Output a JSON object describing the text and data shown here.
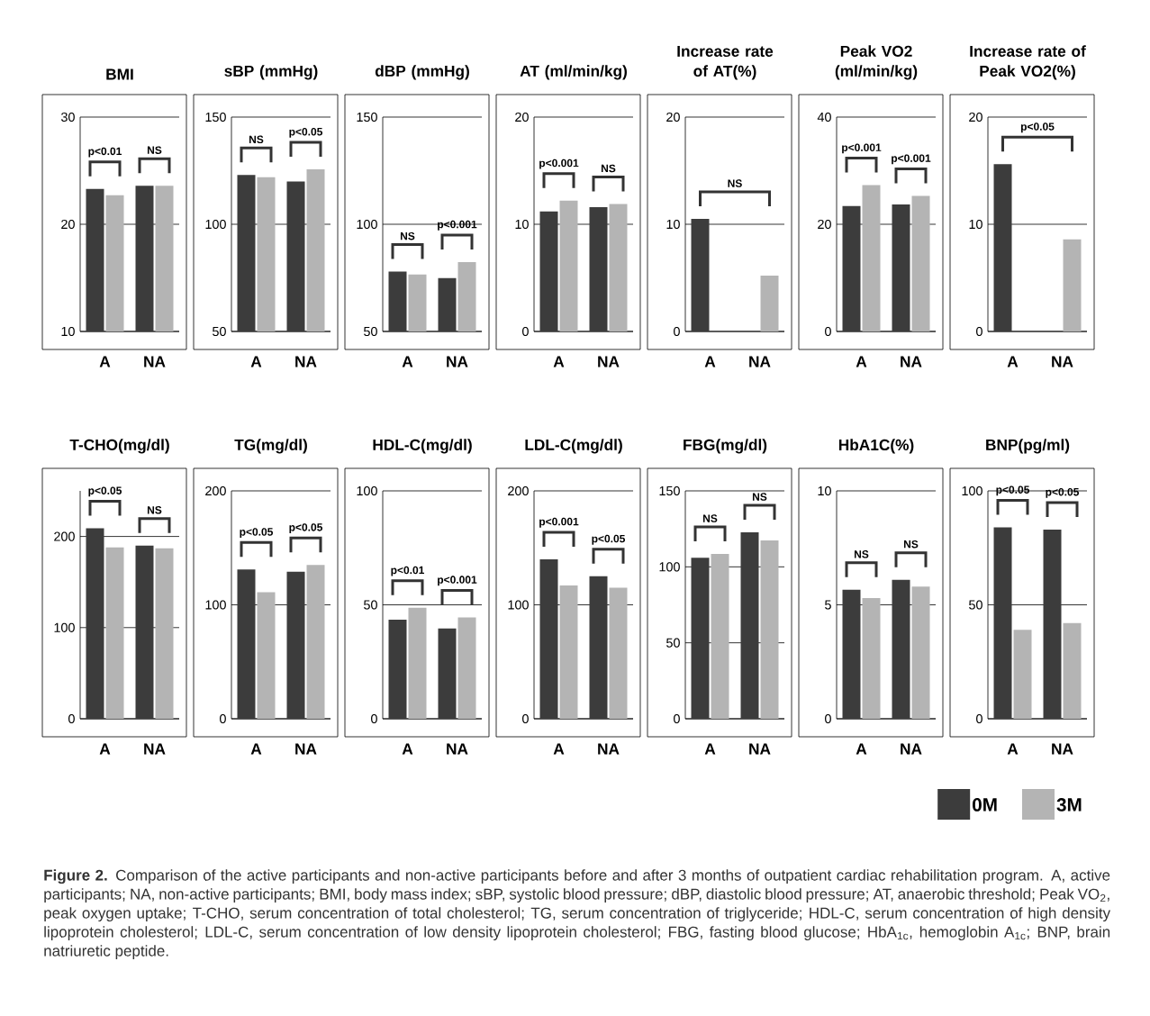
{
  "chart_data": [
    {
      "type": "bar",
      "title": "BMI",
      "categories": [
        "A",
        "NA"
      ],
      "ylim": [
        10,
        30
      ],
      "yticks": [
        10,
        20,
        30
      ],
      "grid": "y",
      "series": [
        {
          "color": "#3c3c3c",
          "values": [
            23.3,
            23.6
          ]
        },
        {
          "color": "#b4b4b4",
          "values": [
            22.7,
            23.6
          ]
        }
      ],
      "annotations": [
        "p<0.01",
        "NS"
      ]
    },
    {
      "type": "bar",
      "title": "sBP (mmHg)",
      "categories": [
        "A",
        "NA"
      ],
      "ylim": [
        50,
        150
      ],
      "yticks": [
        50,
        100,
        150
      ],
      "grid": "y",
      "series": [
        {
          "color": "#3c3c3c",
          "values": [
            123,
            120
          ]
        },
        {
          "color": "#b4b4b4",
          "values": [
            122,
            125.6
          ]
        }
      ],
      "annotations": [
        "NS",
        "p<0.05"
      ]
    },
    {
      "type": "bar",
      "title": "dBP (mmHg)",
      "categories": [
        "A",
        "NA"
      ],
      "ylim": [
        50,
        150
      ],
      "yticks": [
        50,
        100,
        150
      ],
      "grid": "y",
      "series": [
        {
          "color": "#3c3c3c",
          "values": [
            77.9,
            74.9
          ]
        },
        {
          "color": "#b4b4b4",
          "values": [
            76.6,
            82.4
          ]
        }
      ],
      "annotations": [
        "NS",
        "p<0.001"
      ]
    },
    {
      "type": "bar",
      "title": "AT (ml/min/kg)",
      "categories": [
        "A",
        "NA"
      ],
      "ylim": [
        0,
        20
      ],
      "yticks": [
        0,
        10,
        20
      ],
      "grid": "y",
      "series": [
        {
          "color": "#3c3c3c",
          "values": [
            11.2,
            11.6
          ]
        },
        {
          "color": "#b4b4b4",
          "values": [
            12.2,
            11.9
          ]
        }
      ],
      "annotations": [
        "p<0.001",
        "NS"
      ]
    },
    {
      "type": "bar",
      "title": "Increase rate of AT(%)",
      "categories": [
        "A",
        "NA"
      ],
      "ylim": [
        0,
        20
      ],
      "yticks": [
        0,
        10,
        20
      ],
      "grid": "y",
      "series": [
        {
          "color": "#3c3c3c",
          "values": [
            10.5,
            null
          ]
        },
        {
          "color": "#b4b4b4",
          "values": [
            null,
            5.2
          ]
        }
      ],
      "annotations": [
        "NS"
      ]
    },
    {
      "type": "bar",
      "title": "Peak VO2 (ml/min/kg)",
      "categories": [
        "A",
        "NA"
      ],
      "ylim": [
        0,
        40
      ],
      "yticks": [
        0,
        20,
        40
      ],
      "grid": "y",
      "series": [
        {
          "color": "#3c3c3c",
          "values": [
            23.4,
            23.7
          ]
        },
        {
          "color": "#b4b4b4",
          "values": [
            27.3,
            25.3
          ]
        }
      ],
      "annotations": [
        "p<0.001",
        "p<0.001"
      ]
    },
    {
      "type": "bar",
      "title": "Increase rate of Peak VO2(%)",
      "categories": [
        "A",
        "NA"
      ],
      "ylim": [
        0,
        20
      ],
      "yticks": [
        0,
        10,
        20
      ],
      "grid": "y",
      "series": [
        {
          "color": "#3c3c3c",
          "values": [
            15.6,
            null
          ]
        },
        {
          "color": "#b4b4b4",
          "values": [
            null,
            8.6
          ]
        }
      ],
      "annotations": [
        "p<0.05"
      ]
    },
    {
      "type": "bar",
      "title": "T-CHO(mg/dl)",
      "categories": [
        "A",
        "NA"
      ],
      "ylim": [
        0,
        250
      ],
      "yticks": [
        0,
        100,
        200
      ],
      "grid": "y",
      "series": [
        {
          "color": "#3c3c3c",
          "values": [
            209,
            190
          ]
        },
        {
          "color": "#b4b4b4",
          "values": [
            188,
            187
          ]
        }
      ],
      "annotations": [
        "p<0.05",
        "NS"
      ]
    },
    {
      "type": "bar",
      "title": "TG(mg/dl)",
      "categories": [
        "A",
        "NA"
      ],
      "ylim": [
        0,
        200
      ],
      "yticks": [
        0,
        100,
        200
      ],
      "grid": "y",
      "series": [
        {
          "color": "#3c3c3c",
          "values": [
            131,
            129
          ]
        },
        {
          "color": "#b4b4b4",
          "values": [
            111,
            135
          ]
        }
      ],
      "annotations": [
        "p<0.05",
        "p<0.05"
      ]
    },
    {
      "type": "bar",
      "title": "HDL-C(mg/dl)",
      "categories": [
        "A",
        "NA"
      ],
      "ylim": [
        0,
        100
      ],
      "yticks": [
        0,
        50,
        100
      ],
      "grid": "y",
      "series": [
        {
          "color": "#3c3c3c",
          "values": [
            43.5,
            39.6
          ]
        },
        {
          "color": "#b4b4b4",
          "values": [
            48.7,
            44.5
          ]
        }
      ],
      "annotations": [
        "p<0.01",
        "p<0.001"
      ]
    },
    {
      "type": "bar",
      "title": "LDL-C(mg/dl)",
      "categories": [
        "A",
        "NA"
      ],
      "ylim": [
        0,
        200
      ],
      "yticks": [
        0,
        100,
        200
      ],
      "grid": "y",
      "series": [
        {
          "color": "#3c3c3c",
          "values": [
            140,
            125
          ]
        },
        {
          "color": "#b4b4b4",
          "values": [
            117,
            115
          ]
        }
      ],
      "annotations": [
        "p<0.001",
        "p<0.05"
      ]
    },
    {
      "type": "bar",
      "title": "FBG(mg/dl)",
      "categories": [
        "A",
        "NA"
      ],
      "ylim": [
        0,
        150
      ],
      "yticks": [
        0,
        50,
        100,
        150
      ],
      "grid": "y",
      "series": [
        {
          "color": "#3c3c3c",
          "values": [
            106,
            122.7
          ]
        },
        {
          "color": "#b4b4b4",
          "values": [
            108.5,
            117.4
          ]
        }
      ],
      "annotations": [
        "NS",
        "NS"
      ]
    },
    {
      "type": "bar",
      "title": "HbA1C(%)",
      "categories": [
        "A",
        "NA"
      ],
      "ylim": [
        0,
        10
      ],
      "yticks": [
        0,
        5,
        10
      ],
      "grid": "y",
      "series": [
        {
          "color": "#3c3c3c",
          "values": [
            5.66,
            6.1
          ]
        },
        {
          "color": "#b4b4b4",
          "values": [
            5.3,
            5.8
          ]
        }
      ],
      "annotations": [
        "NS",
        "NS"
      ]
    },
    {
      "type": "bar",
      "title": "BNP(pg/ml)",
      "categories": [
        "A",
        "NA"
      ],
      "ylim": [
        0,
        100
      ],
      "yticks": [
        0,
        50,
        100
      ],
      "grid": "y",
      "legend": "bottom",
      "series": [
        {
          "name": "0M",
          "color": "#3c3c3c",
          "values": [
            84,
            83
          ]
        },
        {
          "name": "3M",
          "color": "#b4b4b4",
          "values": [
            39,
            42
          ]
        }
      ],
      "annotations": [
        "p<0.05",
        "p<0.05"
      ]
    },
    {
      "type": "other",
      "annotations": [
        "**Figure 2.** Comparison of the active participants and non-active participants before and after 3 months of outpatient cardiac rehabilitation program. A, active participants; NA, non-active participants; BMI, body mass index; sBP, systolic blood pressure; dBP, diastolic blood pressure; AT, anaerobic threshold; Peak VO$_{2}$, peak oxygen uptake; T-CHO, serum concentration of total cholesterol; TG, serum concentration of triglyceride; HDL-C, serum concentration of high density lipoprotein cholesterol; LDL-C, serum concentration of low density lipoprotein cholesterol; FBG, fasting blood glucose; HbA$_{1c}$, hemoglobin A$_{1c}$; BNP, brain natriuretic peptide."
      ]
    }
  ]
}
